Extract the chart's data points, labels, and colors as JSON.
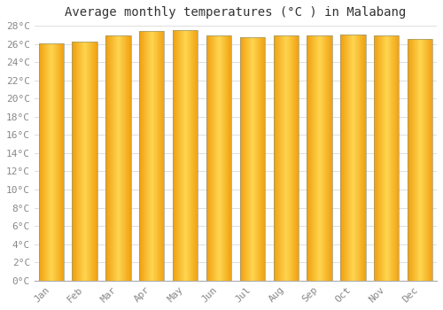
{
  "title": "Average monthly temperatures (°C ) in Malabang",
  "months": [
    "Jan",
    "Feb",
    "Mar",
    "Apr",
    "May",
    "Jun",
    "Jul",
    "Aug",
    "Sep",
    "Oct",
    "Nov",
    "Dec"
  ],
  "values": [
    26.1,
    26.3,
    26.9,
    27.4,
    27.5,
    26.9,
    26.7,
    26.9,
    26.9,
    27.0,
    26.9,
    26.5
  ],
  "bar_color_center": "#FFD040",
  "bar_color_edge": "#F0A000",
  "bar_edge_color": "#B08820",
  "background_color": "#FFFFFF",
  "grid_color": "#DDDDDD",
  "ylim": [
    0,
    28
  ],
  "ytick_step": 2,
  "title_fontsize": 10,
  "tick_fontsize": 8,
  "font_family": "monospace"
}
